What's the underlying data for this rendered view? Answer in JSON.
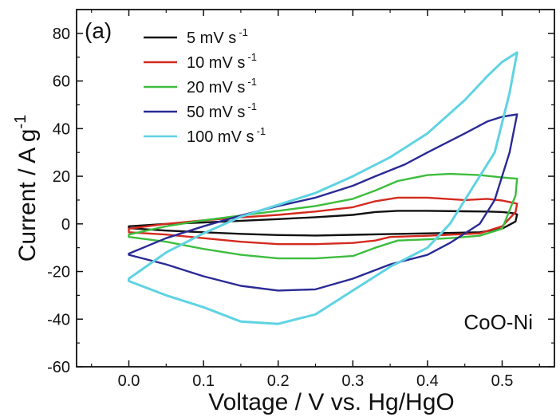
{
  "chart_data": {
    "type": "line",
    "panel_label": "(a)",
    "annotation": "CoO-Ni",
    "xlabel": "Voltage / V vs. Hg/HgO",
    "ylabel": "Current / A g",
    "ylabel_superscript": "-1",
    "xlim": [
      -0.07,
      0.57
    ],
    "ylim": [
      -60,
      90
    ],
    "xticks": [
      0.0,
      0.1,
      0.2,
      0.3,
      0.4,
      0.5
    ],
    "xtick_labels": [
      "0.0",
      "0.1",
      "0.2",
      "0.3",
      "0.4",
      "0.5"
    ],
    "yticks": [
      -60,
      -40,
      -20,
      0,
      20,
      40,
      60,
      80
    ],
    "ytick_labels": [
      "-60",
      "-40",
      "-20",
      "0",
      "20",
      "40",
      "60",
      "80"
    ],
    "grid": false,
    "legend_position": "top-left",
    "series": [
      {
        "name": "5 mV s",
        "name_superscript": "-1",
        "color": "#111111",
        "points": [
          [
            0.0,
            -1.0
          ],
          [
            0.05,
            0.0
          ],
          [
            0.1,
            0.6
          ],
          [
            0.15,
            1.3
          ],
          [
            0.2,
            2.0
          ],
          [
            0.25,
            2.8
          ],
          [
            0.3,
            3.8
          ],
          [
            0.33,
            5.0
          ],
          [
            0.36,
            5.5
          ],
          [
            0.4,
            5.5
          ],
          [
            0.45,
            5.3
          ],
          [
            0.48,
            5.2
          ],
          [
            0.5,
            5.0
          ],
          [
            0.515,
            4.5
          ],
          [
            0.52,
            4.0
          ],
          [
            0.518,
            1.0
          ],
          [
            0.5,
            -2.0
          ],
          [
            0.47,
            -3.5
          ],
          [
            0.4,
            -4.0
          ],
          [
            0.35,
            -4.3
          ],
          [
            0.3,
            -4.6
          ],
          [
            0.25,
            -4.9
          ],
          [
            0.2,
            -4.7
          ],
          [
            0.15,
            -4.2
          ],
          [
            0.1,
            -3.5
          ],
          [
            0.05,
            -2.8
          ],
          [
            0.0,
            -1.8
          ],
          [
            0.0,
            -1.0
          ]
        ]
      },
      {
        "name": "10 mV s",
        "name_superscript": "-1",
        "color": "#d42a1e",
        "points": [
          [
            0.0,
            -2.0
          ],
          [
            0.05,
            0.0
          ],
          [
            0.1,
            1.5
          ],
          [
            0.15,
            2.7
          ],
          [
            0.2,
            3.8
          ],
          [
            0.25,
            5.2
          ],
          [
            0.3,
            7.0
          ],
          [
            0.33,
            9.5
          ],
          [
            0.36,
            11.0
          ],
          [
            0.4,
            11.0
          ],
          [
            0.45,
            10.0
          ],
          [
            0.48,
            10.5
          ],
          [
            0.5,
            9.8
          ],
          [
            0.52,
            8.5
          ],
          [
            0.518,
            5.0
          ],
          [
            0.5,
            -1.0
          ],
          [
            0.47,
            -4.0
          ],
          [
            0.4,
            -5.0
          ],
          [
            0.35,
            -5.5
          ],
          [
            0.33,
            -7.0
          ],
          [
            0.3,
            -8.0
          ],
          [
            0.25,
            -8.5
          ],
          [
            0.2,
            -8.5
          ],
          [
            0.15,
            -7.5
          ],
          [
            0.1,
            -6.0
          ],
          [
            0.05,
            -4.5
          ],
          [
            0.0,
            -3.5
          ],
          [
            0.0,
            -2.0
          ]
        ]
      },
      {
        "name": "20 mV s",
        "name_superscript": "-1",
        "color": "#3dbd3d",
        "points": [
          [
            0.0,
            -4.5
          ],
          [
            0.05,
            -1.0
          ],
          [
            0.1,
            1.5
          ],
          [
            0.15,
            3.5
          ],
          [
            0.2,
            5.5
          ],
          [
            0.25,
            7.5
          ],
          [
            0.3,
            10.5
          ],
          [
            0.33,
            14.0
          ],
          [
            0.36,
            18.0
          ],
          [
            0.4,
            20.5
          ],
          [
            0.43,
            21.0
          ],
          [
            0.47,
            20.5
          ],
          [
            0.5,
            19.5
          ],
          [
            0.52,
            19.0
          ],
          [
            0.518,
            12.0
          ],
          [
            0.5,
            -2.0
          ],
          [
            0.47,
            -5.0
          ],
          [
            0.43,
            -6.0
          ],
          [
            0.4,
            -6.5
          ],
          [
            0.36,
            -7.0
          ],
          [
            0.33,
            -10.0
          ],
          [
            0.3,
            -13.5
          ],
          [
            0.25,
            -14.5
          ],
          [
            0.2,
            -14.5
          ],
          [
            0.15,
            -13.0
          ],
          [
            0.1,
            -10.5
          ],
          [
            0.05,
            -7.5
          ],
          [
            0.0,
            -5.5
          ],
          [
            0.0,
            -4.5
          ]
        ]
      },
      {
        "name": "50 mV s",
        "name_superscript": "-1",
        "color": "#2a2a96",
        "points": [
          [
            0.0,
            -12.5
          ],
          [
            0.05,
            -6.0
          ],
          [
            0.1,
            -1.0
          ],
          [
            0.15,
            3.5
          ],
          [
            0.2,
            7.5
          ],
          [
            0.25,
            11.0
          ],
          [
            0.3,
            16.0
          ],
          [
            0.33,
            20.0
          ],
          [
            0.37,
            25.0
          ],
          [
            0.4,
            30.0
          ],
          [
            0.45,
            38.0
          ],
          [
            0.48,
            43.0
          ],
          [
            0.5,
            45.0
          ],
          [
            0.52,
            46.0
          ],
          [
            0.51,
            30.0
          ],
          [
            0.49,
            10.0
          ],
          [
            0.47,
            0.0
          ],
          [
            0.43,
            -8.0
          ],
          [
            0.4,
            -13.0
          ],
          [
            0.35,
            -17.0
          ],
          [
            0.3,
            -23.0
          ],
          [
            0.25,
            -27.5
          ],
          [
            0.2,
            -28.0
          ],
          [
            0.15,
            -26.0
          ],
          [
            0.1,
            -22.0
          ],
          [
            0.05,
            -17.0
          ],
          [
            0.0,
            -13.0
          ],
          [
            0.0,
            -12.5
          ]
        ]
      },
      {
        "name": "100 mV s",
        "name_superscript": "-1",
        "color": "#5fd3e3",
        "points": [
          [
            0.0,
            -23.0
          ],
          [
            0.05,
            -12.0
          ],
          [
            0.1,
            -4.0
          ],
          [
            0.15,
            3.0
          ],
          [
            0.2,
            8.0
          ],
          [
            0.25,
            13.0
          ],
          [
            0.3,
            20.0
          ],
          [
            0.35,
            28.0
          ],
          [
            0.4,
            38.0
          ],
          [
            0.45,
            52.0
          ],
          [
            0.48,
            62.0
          ],
          [
            0.5,
            68.0
          ],
          [
            0.52,
            72.0
          ],
          [
            0.51,
            55.0
          ],
          [
            0.49,
            30.0
          ],
          [
            0.46,
            15.0
          ],
          [
            0.43,
            0.0
          ],
          [
            0.4,
            -10.0
          ],
          [
            0.35,
            -18.0
          ],
          [
            0.3,
            -28.0
          ],
          [
            0.25,
            -38.0
          ],
          [
            0.2,
            -42.0
          ],
          [
            0.15,
            -41.0
          ],
          [
            0.1,
            -35.0
          ],
          [
            0.05,
            -30.0
          ],
          [
            0.0,
            -24.0
          ],
          [
            0.0,
            -23.0
          ]
        ]
      }
    ]
  }
}
